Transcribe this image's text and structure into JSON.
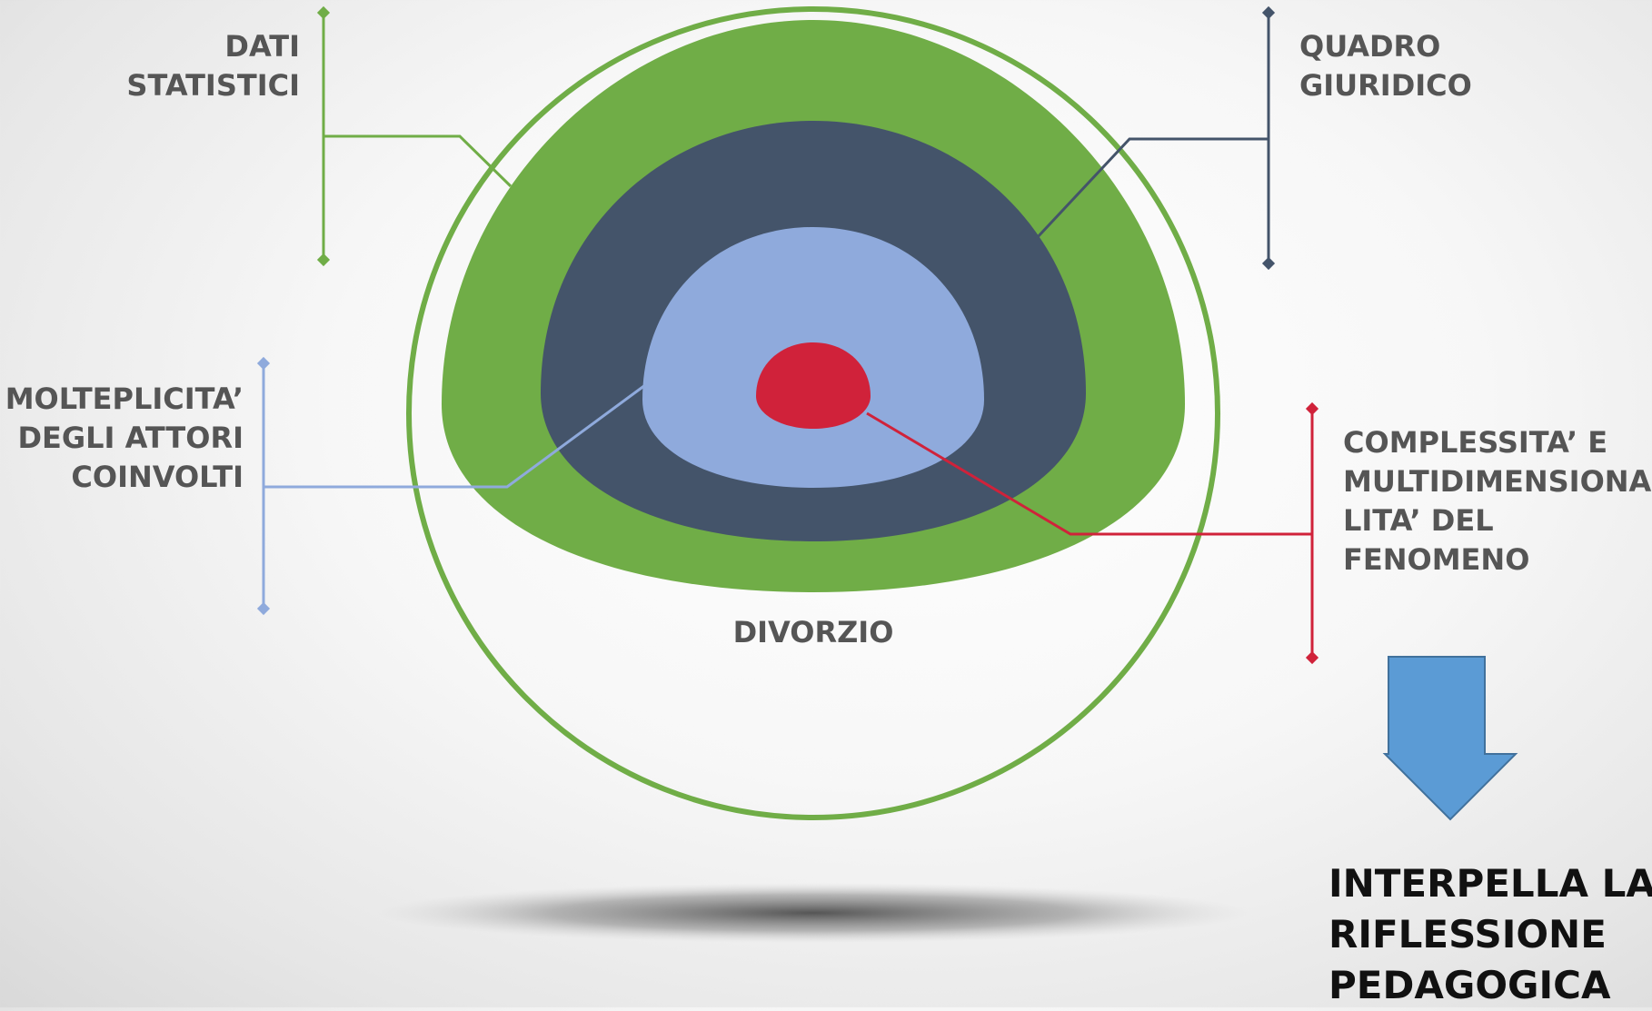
{
  "diagram": {
    "center_label": "DIVORZIO",
    "labels": {
      "dati_statistici": [
        "DATI",
        "STATISTICI"
      ],
      "quadro_giuridico": [
        "QUADRO",
        "GIURIDICO"
      ],
      "molteplicita": [
        "MOLTEPLICITA’",
        "DEGLI ATTORI",
        "COINVOLTI"
      ],
      "complessita": [
        "COMPLESSITA’ E",
        "MULTIDIMENSIONA",
        "LITA’ DEL",
        "FENOMENO"
      ]
    },
    "conclusion": [
      "INTERPELLA LA",
      "RIFLESSIONE",
      "PEDAGOGICA"
    ],
    "colors": {
      "green": "#70AD47",
      "navy": "#44546A",
      "light_blue": "#8FAADC",
      "red": "#D0223A",
      "arrow_blue": "#5B9BD5",
      "label_gray": "#555555",
      "conclusion_black": "#111111"
    }
  }
}
